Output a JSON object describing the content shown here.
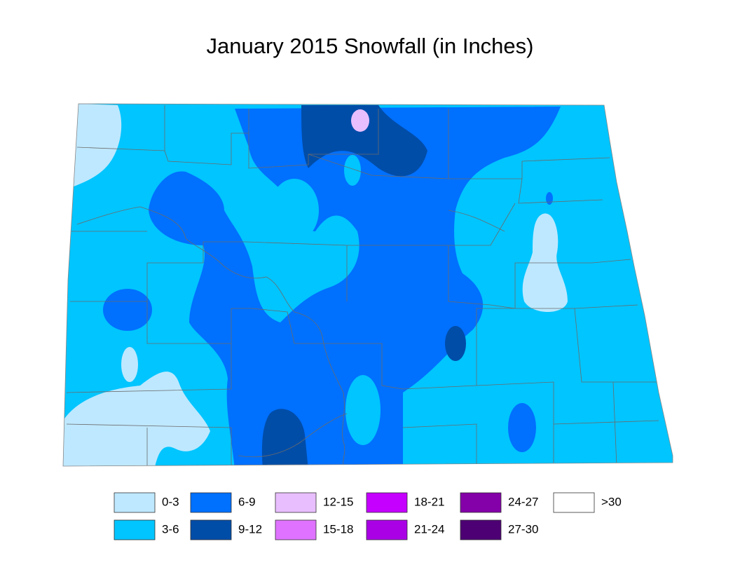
{
  "title": "January 2015 Snowfall (in Inches)",
  "legend": [
    {
      "label": "0-3",
      "color": "#bee8ff"
    },
    {
      "label": "3-6",
      "color": "#00c5ff"
    },
    {
      "label": "6-9",
      "color": "#0070ff"
    },
    {
      "label": "9-12",
      "color": "#004da8"
    },
    {
      "label": "12-15",
      "color": "#e8beff"
    },
    {
      "label": "15-18",
      "color": "#df73ff"
    },
    {
      "label": "18-21",
      "color": "#c500ff"
    },
    {
      "label": "21-24",
      "color": "#a900e6"
    },
    {
      "label": "24-27",
      "color": "#8400a8"
    },
    {
      "label": "27-30",
      "color": "#4c0073"
    },
    {
      "label": ">30",
      "color": "#ffffff"
    }
  ]
}
